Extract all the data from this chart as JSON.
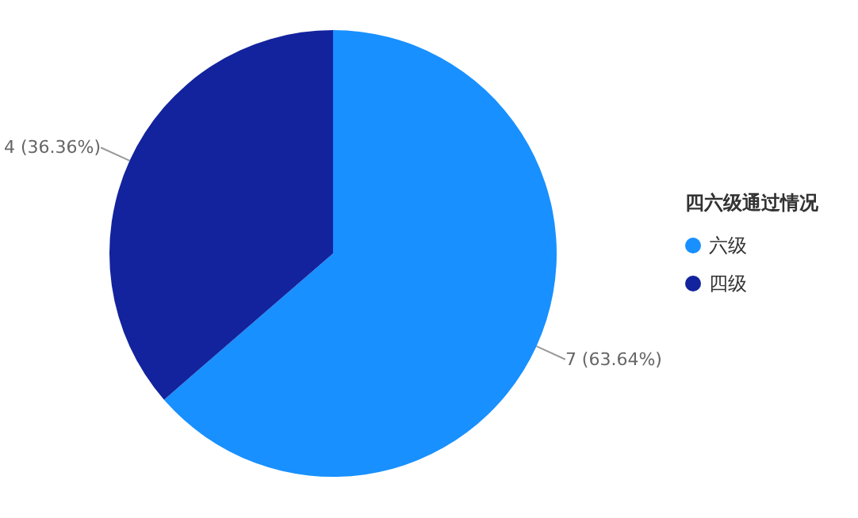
{
  "chart_data": {
    "type": "pie",
    "legend_title": "四六级通过情况",
    "categories": [
      "六级",
      "四级"
    ],
    "values": [
      7,
      4
    ],
    "colors": [
      "#1890ff",
      "#13239d"
    ],
    "value_labels": [
      "7 (63.64%)",
      "4 (36.36%)"
    ],
    "legend": "right"
  }
}
